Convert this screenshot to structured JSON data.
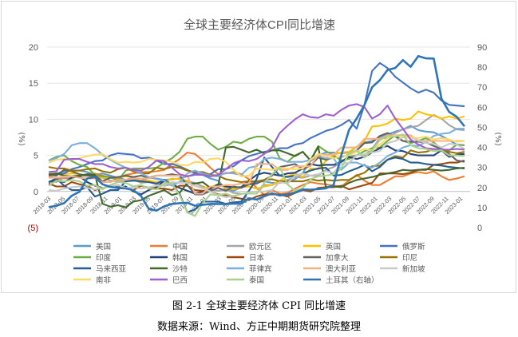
{
  "chart_data": {
    "type": "line",
    "title": "全球主要经济体CPI同比增速",
    "y_left_label": "(%)",
    "y_right_label": "(%)",
    "y_left_ticks": [
      "20",
      "15",
      "10",
      "5",
      "0",
      "(5)"
    ],
    "y_right_ticks": [
      "90",
      "80",
      "70",
      "60",
      "50",
      "40",
      "30",
      "20",
      "10",
      "0"
    ],
    "ylim_left": [
      -5,
      20
    ],
    "ylim_right": [
      0,
      90
    ],
    "x_tick_labels": [
      "2018-03",
      "2018-05",
      "2018-07",
      "2018-09",
      "2018-11",
      "2019-01",
      "2019-03",
      "2019-05",
      "2019-07",
      "2019-09",
      "2019-11",
      "2020-01",
      "2020-03",
      "2020-05",
      "2020-07",
      "2020-09",
      "2020-11",
      "2021-01",
      "2021-03",
      "2021-05",
      "2021-07",
      "2021-09",
      "2021-11",
      "2022-01",
      "2022-03",
      "2022-05",
      "2022-07",
      "2022-09",
      "2022-11",
      "2023-01"
    ],
    "grid": "horizontal",
    "legend_position": "bottom",
    "series": [
      {
        "name": "美国",
        "color": "#5b9bd5",
        "axis": "left",
        "values": [
          2.4,
          2.5,
          2.8,
          2.9,
          2.9,
          2.7,
          2.3,
          2.5,
          2.2,
          1.9,
          1.6,
          1.9,
          1.5,
          1.9,
          1.8,
          1.6,
          1.7,
          1.8,
          2.1,
          2.3,
          2.3,
          1.8,
          1.5,
          0.3,
          0.1,
          0.6,
          1.0,
          1.3,
          1.4,
          1.2,
          1.2,
          1.4,
          1.7,
          2.6,
          4.2,
          5.0,
          5.4,
          5.4,
          5.3,
          5.4,
          6.2,
          6.8,
          7.0,
          7.5,
          7.9,
          8.3,
          8.6,
          9.1,
          8.5,
          8.3,
          8.2,
          7.7,
          7.1,
          6.5,
          6.4
        ]
      },
      {
        "name": "中国",
        "color": "#ed7d31",
        "axis": "left",
        "values": [
          2.1,
          1.8,
          1.8,
          1.9,
          2.1,
          2.3,
          2.5,
          2.2,
          1.9,
          1.7,
          2.3,
          2.5,
          2.7,
          2.7,
          2.8,
          3.0,
          3.8,
          4.5,
          5.4,
          5.2,
          4.3,
          3.3,
          2.4,
          2.5,
          2.7,
          2.4,
          1.7,
          0.5,
          -0.5,
          0.2,
          -0.3,
          -0.2,
          0.4,
          0.9,
          1.3,
          1.1,
          1.0,
          0.8,
          0.7,
          1.5,
          2.3,
          1.5,
          0.9,
          0.9,
          1.5,
          2.1,
          2.1,
          2.5,
          2.7,
          2.5,
          2.8,
          2.1,
          1.6,
          1.8,
          2.1
        ]
      },
      {
        "name": "欧元区",
        "color": "#a5a5a5",
        "axis": "left",
        "values": [
          1.4,
          1.3,
          1.9,
          2.0,
          2.1,
          2.2,
          2.2,
          1.9,
          1.5,
          1.4,
          1.4,
          1.7,
          1.2,
          1.3,
          1.0,
          0.8,
          1.0,
          1.3,
          1.4,
          1.2,
          0.7,
          0.3,
          0.1,
          0.3,
          -0.2,
          -0.3,
          -0.3,
          -0.3,
          0.9,
          0.9,
          1.3,
          1.6,
          2.0,
          1.9,
          2.2,
          2.2,
          3.0,
          3.4,
          4.1,
          4.9,
          5.0,
          5.1,
          5.9,
          7.4,
          7.4,
          8.1,
          8.6,
          8.9,
          9.1,
          9.9,
          10.6,
          10.1,
          9.2,
          8.6,
          8.5
        ]
      },
      {
        "name": "英国",
        "color": "#ffc000",
        "axis": "left",
        "values": [
          2.7,
          2.4,
          2.4,
          2.5,
          2.4,
          2.2,
          1.8,
          1.9,
          1.9,
          2.0,
          2.1,
          2.0,
          1.5,
          1.5,
          1.3,
          1.3,
          1.8,
          1.7,
          1.5,
          0.8,
          0.5,
          0.6,
          1.0,
          0.5,
          0.3,
          0.6,
          0.7,
          0.4,
          0.7,
          0.9,
          1.5,
          2.1,
          2.5,
          2.0,
          3.2,
          3.1,
          4.2,
          5.1,
          5.4,
          5.5,
          6.2,
          7.0,
          9.0,
          9.1,
          9.4,
          10.1,
          9.9,
          10.1,
          11.1,
          10.7,
          10.5,
          10.1,
          10.4,
          10.1,
          10.4
        ]
      },
      {
        "name": "俄罗斯",
        "color": "#4472c4",
        "axis": "left",
        "values": [
          2.4,
          2.4,
          2.5,
          3.1,
          3.4,
          3.8,
          4.2,
          4.3,
          5.0,
          5.3,
          5.2,
          5.1,
          4.6,
          4.7,
          4.3,
          3.8,
          3.8,
          3.5,
          3.0,
          2.5,
          2.3,
          2.4,
          3.1,
          3.1,
          3.5,
          4.3,
          4.9,
          5.2,
          5.5,
          5.7,
          6.0,
          6.0,
          6.5,
          6.7,
          7.4,
          7.9,
          8.4,
          8.7,
          9.2,
          9.9,
          8.7,
          12.0,
          16.7,
          17.8,
          17.1,
          15.9,
          15.1,
          14.3,
          13.7,
          14.1,
          13.7,
          12.6,
          12.0,
          11.9,
          11.8
        ]
      },
      {
        "name": "印度",
        "color": "#70ad47",
        "axis": "left",
        "values": [
          4.3,
          4.8,
          5.0,
          4.2,
          3.7,
          3.4,
          2.3,
          2.1,
          2.0,
          1.5,
          2.9,
          3.2,
          3.2,
          3.2,
          3.3,
          4.0,
          4.6,
          5.5,
          7.3,
          7.6,
          7.6,
          6.6,
          5.8,
          6.2,
          6.9,
          6.7,
          7.3,
          7.6,
          7.6,
          6.9,
          4.6,
          4.1,
          5.0,
          5.5,
          4.3,
          6.3,
          5.6,
          5.0,
          4.3,
          4.5,
          5.0,
          5.6,
          6.0,
          6.1,
          7.0,
          7.8,
          7.0,
          6.7,
          7.0,
          7.4,
          6.8,
          5.9,
          5.7,
          6.5,
          6.4
        ]
      },
      {
        "name": "韩国",
        "color": "#264478",
        "axis": "left",
        "values": [
          1.3,
          1.5,
          1.3,
          1.9,
          2.1,
          1.3,
          0.8,
          0.5,
          0.7,
          0.6,
          0.7,
          0.0,
          -0.4,
          0.2,
          0.6,
          1.5,
          1.0,
          0.5,
          0.1,
          -0.3,
          0.0,
          0.4,
          1.0,
          0.7,
          0.6,
          0.6,
          1.5,
          2.3,
          2.6,
          2.4,
          2.2,
          2.5,
          2.6,
          3.2,
          3.8,
          3.6,
          3.7,
          3.7,
          4.1,
          4.8,
          4.5,
          4.8,
          5.4,
          6.0,
          6.3,
          5.7,
          5.6,
          5.2,
          5.0,
          5.0,
          5.0,
          5.7,
          4.8,
          5.1,
          5.2
        ]
      },
      {
        "name": "日本",
        "color": "#9e480e",
        "axis": "left",
        "values": [
          1.1,
          0.7,
          0.7,
          1.3,
          1.0,
          0.8,
          0.2,
          0.5,
          0.7,
          0.9,
          0.5,
          0.2,
          0.8,
          0.5,
          0.4,
          0.4,
          0.2,
          0.8,
          0.8,
          0.2,
          0.1,
          0.0,
          -0.4,
          -0.5,
          -0.8,
          -1.0,
          -1.2,
          -0.7,
          -0.4,
          -0.4,
          -0.4,
          -0.7,
          -0.2,
          0.2,
          0.0,
          0.5,
          0.6,
          0.6,
          0.8,
          0.3,
          0.6,
          0.9,
          1.2,
          2.5,
          2.5,
          2.5,
          2.4,
          2.6,
          3.0,
          3.0,
          3.7,
          3.8,
          4.0,
          4.0,
          4.3
        ]
      },
      {
        "name": "加拿大",
        "color": "#636363",
        "axis": "left",
        "values": [
          2.3,
          2.2,
          3.0,
          2.8,
          2.4,
          2.2,
          2.2,
          1.4,
          1.9,
          2.0,
          2.2,
          2.0,
          2.2,
          1.9,
          2.2,
          2.2,
          2.4,
          2.2,
          0.9,
          -0.4,
          -0.4,
          0.1,
          0.5,
          0.1,
          0.7,
          0.5,
          1.0,
          1.1,
          1.6,
          2.2,
          3.4,
          3.6,
          3.8,
          3.1,
          3.6,
          4.7,
          4.4,
          4.7,
          4.8,
          5.1,
          5.7,
          6.7,
          6.8,
          7.7,
          8.1,
          7.6,
          7.0,
          6.9,
          6.9,
          6.8,
          6.3,
          5.9,
          5.2,
          4.3,
          4.1
        ]
      },
      {
        "name": "印尼",
        "color": "#997300",
        "axis": "left",
        "values": [
          3.4,
          3.2,
          3.2,
          2.9,
          2.9,
          3.1,
          3.2,
          2.8,
          2.6,
          3.1,
          3.3,
          2.8,
          2.5,
          2.5,
          3.3,
          3.1,
          3.4,
          3.3,
          2.9,
          2.7,
          2.7,
          2.3,
          2.2,
          1.7,
          1.5,
          1.3,
          1.4,
          1.4,
          1.6,
          1.7,
          1.4,
          1.4,
          1.4,
          1.4,
          1.7,
          1.5,
          1.6,
          1.5,
          1.6,
          1.6,
          2.2,
          2.6,
          3.5,
          3.6,
          4.4,
          4.9,
          4.7,
          5.7,
          5.4,
          5.5,
          5.9,
          5.7,
          5.5,
          5.3,
          5.5
        ]
      },
      {
        "name": "马来西亚",
        "color": "#255e91",
        "axis": "left",
        "values": [
          1.3,
          1.8,
          0.8,
          0.2,
          0.2,
          0.6,
          -0.7,
          -0.3,
          0.2,
          0.2,
          1.4,
          1.5,
          1.4,
          1.3,
          1.1,
          1.6,
          1.0,
          -0.3,
          -2.9,
          -2.5,
          -1.4,
          -1.4,
          -1.4,
          -1.7,
          -1.5,
          -1.4,
          0.1,
          1.7,
          4.7,
          3.4,
          2.2,
          2.0,
          2.2,
          2.5,
          2.9,
          3.2,
          3.3,
          2.2,
          2.3,
          2.8,
          3.2,
          3.7,
          2.8,
          3.4,
          4.4,
          4.7,
          4.5,
          4.0,
          4.0,
          3.8,
          3.7,
          3.6,
          3.4,
          3.3,
          3.2
        ]
      },
      {
        "name": "沙特",
        "color": "#43682b",
        "axis": "left",
        "values": [
          2.3,
          2.5,
          2.2,
          2.1,
          2.2,
          2.4,
          2.3,
          -1.7,
          -2.1,
          -1.9,
          -2.2,
          -1.4,
          -1.2,
          -0.6,
          -0.2,
          0.2,
          -0.5,
          -0.2,
          1.2,
          1.1,
          1.3,
          0.5,
          0.8,
          6.1,
          6.2,
          5.8,
          5.4,
          5.8,
          5.3,
          5.7,
          5.7,
          5.3,
          4.9,
          5.5,
          4.3,
          6.2,
          0.6,
          0.7,
          0.6,
          1.2,
          1.6,
          1.8,
          2.0,
          2.3,
          2.5,
          2.7,
          3.0,
          2.9,
          3.0,
          3.1,
          3.0,
          2.9,
          3.0,
          3.2,
          3.3
        ]
      },
      {
        "name": "菲律宾",
        "color": "#7cafdd",
        "axis": "left",
        "values": [
          4.3,
          4.6,
          5.2,
          6.4,
          6.7,
          6.7,
          6.0,
          5.1,
          4.4,
          3.8,
          3.3,
          3.0,
          2.5,
          2.0,
          1.7,
          1.5,
          0.8,
          1.3,
          2.5,
          2.9,
          2.5,
          2.2,
          2.1,
          2.6,
          2.5,
          2.3,
          3.3,
          3.5,
          4.5,
          4.7,
          4.5,
          4.1,
          4.1,
          4.1,
          4.4,
          4.9,
          4.6,
          4.6,
          3.0,
          4.0,
          4.0,
          3.6,
          3.3,
          4.0,
          4.9,
          5.4,
          6.1,
          6.4,
          6.3,
          6.9,
          7.7,
          8.0,
          8.1,
          8.7,
          8.7
        ]
      },
      {
        "name": "澳大利亚",
        "color": "#f4b183",
        "axis": "left",
        "values": [
          1.9,
          1.9,
          2.1,
          2.1,
          1.9,
          1.8,
          1.8,
          1.3,
          1.3,
          1.6,
          1.6,
          1.8,
          1.8,
          1.8,
          2.2,
          2.2,
          2.2,
          2.2,
          2.2,
          -0.3,
          -0.3,
          0.7,
          0.7,
          0.9,
          0.9,
          1.1,
          1.1,
          3.8,
          3.8,
          3.8,
          3.0,
          3.0,
          3.5,
          3.5,
          3.5,
          5.1,
          5.1,
          5.1,
          6.1,
          6.1,
          6.1,
          7.3,
          7.3,
          7.3,
          7.8,
          7.8,
          7.8,
          7.8,
          7.0,
          7.0,
          7.0,
          7.0,
          7.0,
          7.0,
          7.0
        ]
      },
      {
        "name": "新加坡",
        "color": "#c9c9c9",
        "axis": "left",
        "values": [
          0.2,
          0.1,
          0.4,
          0.6,
          0.7,
          0.5,
          0.3,
          0.5,
          0.7,
          0.9,
          0.5,
          0.6,
          0.4,
          0.6,
          0.8,
          0.9,
          1.3,
          1.2,
          1.2,
          0.8,
          0.4,
          0.0,
          -0.5,
          -0.8,
          -0.6,
          -0.4,
          -0.1,
          0.0,
          0.0,
          0.2,
          1.3,
          1.1,
          2.2,
          2.5,
          2.2,
          2.4,
          2.8,
          2.6,
          3.8,
          4.0,
          5.0,
          5.2,
          5.4,
          5.6,
          6.7,
          7.0,
          7.5,
          7.5,
          7.1,
          6.7,
          6.6,
          6.1,
          6.6,
          6.5,
          5.9
        ]
      },
      {
        "name": "南非",
        "color": "#ffd966",
        "axis": "left",
        "values": [
          4.0,
          4.4,
          4.5,
          4.4,
          4.6,
          4.9,
          5.1,
          5.2,
          4.5,
          4.0,
          4.1,
          4.0,
          4.1,
          4.5,
          4.4,
          4.3,
          4.1,
          3.7,
          3.6,
          4.1,
          4.0,
          4.5,
          4.6,
          4.1,
          3.0,
          2.1,
          2.2,
          3.2,
          3.1,
          3.0,
          3.3,
          3.2,
          3.1,
          3.2,
          4.4,
          5.2,
          4.9,
          4.6,
          4.9,
          5.0,
          5.5,
          5.9,
          5.7,
          6.5,
          7.4,
          7.8,
          7.6,
          7.5,
          7.4,
          7.6,
          7.2,
          7.4,
          7.2,
          6.9,
          7.0
        ]
      },
      {
        "name": "巴西",
        "color": "#9e5fd1",
        "axis": "left",
        "values": [
          2.7,
          2.8,
          4.4,
          4.5,
          4.5,
          4.1,
          3.8,
          3.8,
          3.4,
          3.2,
          3.3,
          3.0,
          2.9,
          3.4,
          4.3,
          4.2,
          3.3,
          2.4,
          2.1,
          2.4,
          2.3,
          2.1,
          2.3,
          3.1,
          3.9,
          4.3,
          4.2,
          4.5,
          5.2,
          6.1,
          8.1,
          9.1,
          10.0,
          10.7,
          10.3,
          10.2,
          10.7,
          10.5,
          11.3,
          11.9,
          12.1,
          11.7,
          10.1,
          10.7,
          11.9,
          10.1,
          8.7,
          7.2,
          6.5,
          6.0,
          5.9,
          5.8,
          5.8,
          5.9,
          5.8
        ]
      },
      {
        "name": "泰国",
        "color": "#a9d18e",
        "axis": "left",
        "values": [
          0.8,
          1.5,
          1.4,
          1.6,
          1.4,
          0.8,
          0.9,
          0.3,
          0.9,
          1.3,
          1.2,
          0.7,
          0.9,
          0.4,
          0.3,
          1.1,
          1.1,
          -0.5,
          -2.9,
          -3.4,
          -1.6,
          -0.4,
          -0.5,
          -0.3,
          -0.7,
          -0.3,
          -0.3,
          -0.3,
          1.2,
          2.4,
          3.4,
          1.0,
          0.1,
          0.5,
          1.7,
          2.1,
          2.2,
          2.4,
          3.2,
          5.3,
          5.7,
          4.7,
          5.7,
          7.1,
          7.7,
          7.6,
          7.9,
          6.4,
          6.0,
          5.9,
          5.6,
          5.7,
          5.0,
          5.0,
          4.9
        ]
      },
      {
        "name": "土耳其（右轴）",
        "color": "#2e75b6",
        "axis": "right",
        "values": [
          10.2,
          10.9,
          12.2,
          15.9,
          17.9,
          24.5,
          25.2,
          21.6,
          20.3,
          19.7,
          19.5,
          18.7,
          15.7,
          9.3,
          8.5,
          10.6,
          11.8,
          12.2,
          12.4,
          10.9,
          11.4,
          11.8,
          11.8,
          11.7,
          12.0,
          11.9,
          14.6,
          14.0,
          15.6,
          17.1,
          16.0,
          16.6,
          17.5,
          19.0,
          18.9,
          19.2,
          19.6,
          21.3,
          36.1,
          48.7,
          54.4,
          61.1,
          70.0,
          73.5,
          78.6,
          79.6,
          83.5,
          80.2,
          85.5,
          84.4,
          84.3,
          64.3,
          57.7,
          55.2,
          50.5
        ]
      }
    ]
  },
  "caption": "图 2-1 全球主要经济体 CPI 同比增速",
  "source": "数据来源：Wind、方正中期期货研究院整理"
}
